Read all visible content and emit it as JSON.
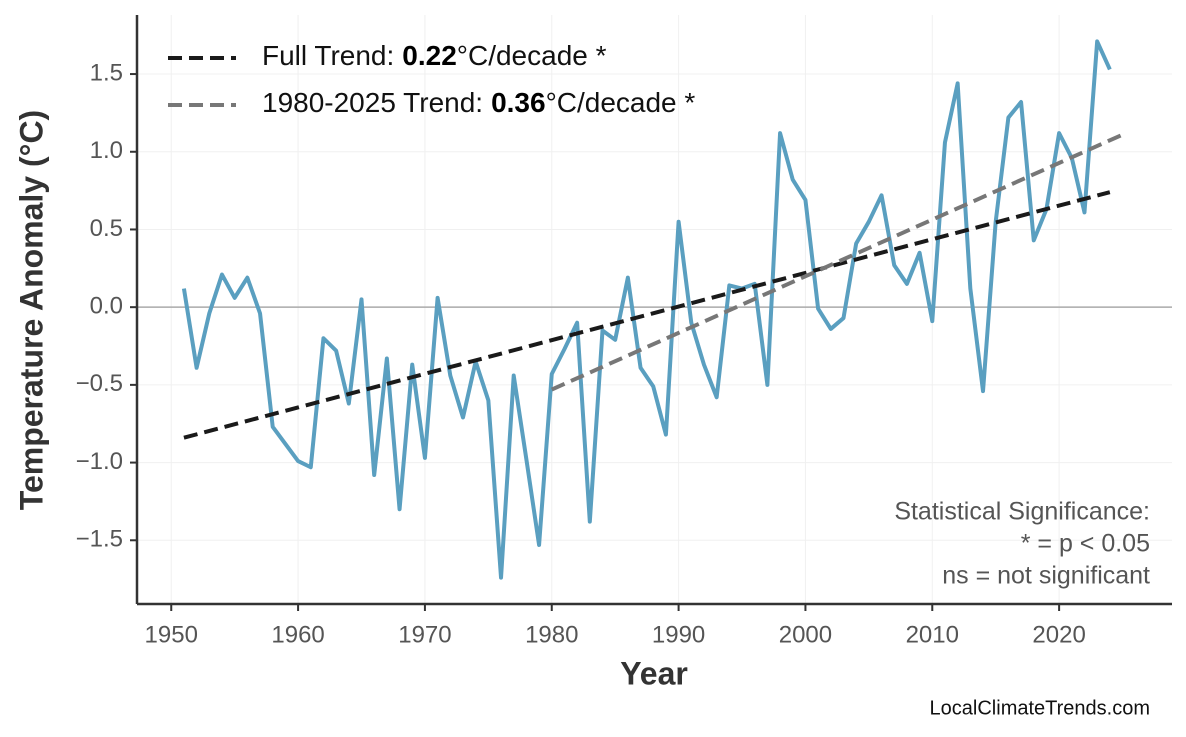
{
  "chart_data": {
    "type": "line",
    "x_label": "Year",
    "y_label": "Temperature Anomaly (°C)",
    "x": [
      1951,
      1952,
      1953,
      1954,
      1955,
      1956,
      1957,
      1958,
      1959,
      1960,
      1961,
      1962,
      1963,
      1964,
      1965,
      1966,
      1967,
      1968,
      1969,
      1970,
      1971,
      1972,
      1973,
      1974,
      1975,
      1976,
      1977,
      1978,
      1979,
      1980,
      1981,
      1982,
      1983,
      1984,
      1985,
      1986,
      1987,
      1988,
      1989,
      1990,
      1991,
      1992,
      1993,
      1994,
      1995,
      1996,
      1997,
      1998,
      1999,
      2000,
      2001,
      2002,
      2003,
      2004,
      2005,
      2006,
      2007,
      2008,
      2009,
      2010,
      2011,
      2012,
      2013,
      2014,
      2015,
      2016,
      2017,
      2018,
      2019,
      2020,
      2021,
      2022,
      2023,
      2024
    ],
    "series": [
      {
        "color": "#5a9fc0",
        "values": [
          0.12,
          -0.39,
          -0.04,
          0.21,
          0.06,
          0.19,
          -0.04,
          -0.77,
          -0.88,
          -0.99,
          -1.03,
          -0.2,
          -0.28,
          -0.62,
          0.05,
          -1.08,
          -0.33,
          -1.3,
          -0.37,
          -0.97,
          0.06,
          -0.44,
          -0.71,
          -0.35,
          -0.6,
          -1.74,
          -0.44,
          -0.98,
          -1.53,
          -0.43,
          -0.27,
          -0.1,
          -1.38,
          -0.15,
          -0.21,
          0.19,
          -0.39,
          -0.51,
          -0.82,
          0.55,
          -0.1,
          -0.37,
          -0.58,
          0.14,
          0.12,
          0.15,
          -0.5,
          1.12,
          0.82,
          0.69,
          -0.01,
          -0.14,
          -0.07,
          0.41,
          0.55,
          0.72,
          0.27,
          0.15,
          0.35,
          -0.09,
          1.06,
          1.44,
          0.12,
          -0.54,
          0.55,
          1.22,
          1.32,
          0.43,
          0.63,
          1.12,
          0.96,
          0.61,
          1.71,
          1.53
        ]
      }
    ],
    "trend_lines": [
      {
        "name": "Full Trend:",
        "slope": 0.22,
        "unit": "°C/decade *",
        "color": "#1a1a1a",
        "x": [
          1951,
          2024
        ],
        "values": [
          -0.84,
          0.74
        ]
      },
      {
        "name": "1980-2025 Trend:",
        "slope": 0.36,
        "unit": "°C/decade *",
        "color": "#777777",
        "x": [
          1980,
          2025
        ],
        "values": [
          -0.53,
          1.11
        ]
      }
    ],
    "hline": 0,
    "xlim": [
      1947.3,
      2028.9
    ],
    "ylim": [
      -1.91,
      1.88
    ],
    "xticks": [
      1950,
      1960,
      1970,
      1980,
      1990,
      2000,
      2010,
      2020
    ],
    "yticks": [
      {
        "value": -1.5,
        "label": "−1.5"
      },
      {
        "value": -1.0,
        "label": "−1.0"
      },
      {
        "value": -0.5,
        "label": "−0.5"
      },
      {
        "value": 0,
        "label": "0.0"
      },
      {
        "value": 0.5,
        "label": "0.5"
      },
      {
        "value": 1.0,
        "label": "1.0"
      },
      {
        "value": 1.5,
        "label": "1.5"
      }
    ],
    "grid": true,
    "legend_position": "upper left",
    "annotations": [
      "Statistical Significance:",
      "* = p < 0.05",
      "ns = not significant"
    ],
    "source": "LocalClimateTrends.com"
  }
}
